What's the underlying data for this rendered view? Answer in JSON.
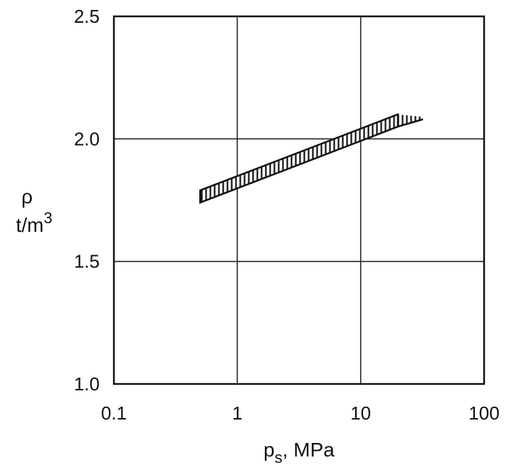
{
  "chart_data": {
    "type": "area",
    "x_scale": "log",
    "xlim": [
      0.1,
      100
    ],
    "ylim": [
      1.0,
      2.5
    ],
    "grid": true,
    "x_ticks": [
      "0.1",
      "1",
      "10",
      "100"
    ],
    "y_ticks": [
      "1.0",
      "1.5",
      "2.0",
      "2.5"
    ],
    "xlabel": {
      "main": "p",
      "sub": "s",
      "rest": ", MPa"
    },
    "ylabel": {
      "line1": "ρ",
      "line2": "t/m",
      "sup": "3"
    },
    "series": [
      {
        "x": [
          0.5,
          20
        ],
        "upper": [
          1.79,
          2.1
        ],
        "lower": [
          1.74,
          2.05
        ],
        "extension": {
          "x": [
            20,
            32
          ],
          "upper": [
            2.1,
            2.09
          ],
          "lower": [
            2.05,
            2.08
          ]
        }
      }
    ]
  }
}
